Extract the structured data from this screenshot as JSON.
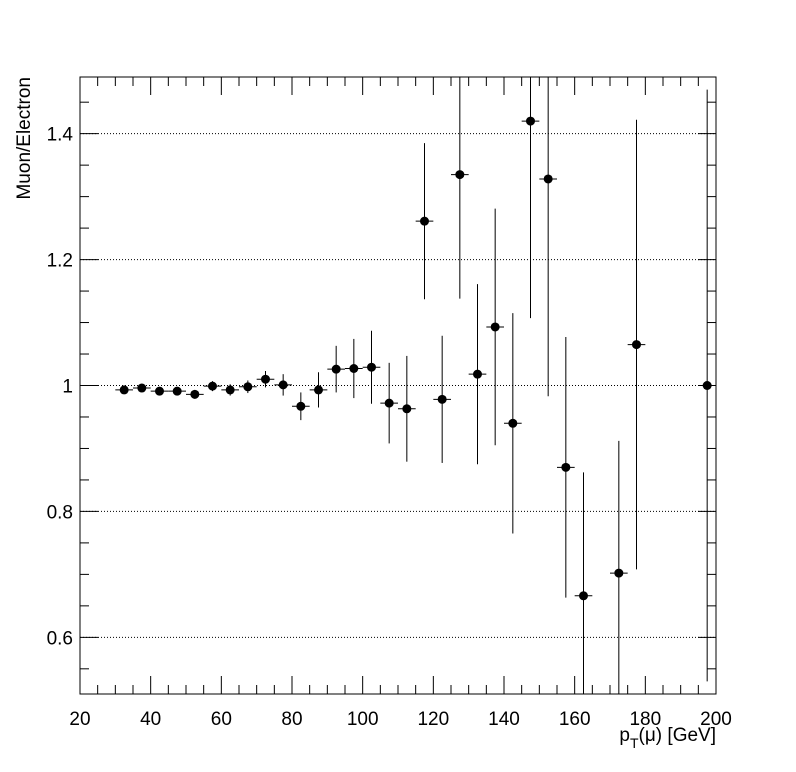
{
  "chart_data": {
    "type": "scatter",
    "title": "",
    "xlabel": "p_T(μ) [GeV]",
    "ylabel": "Muon/Electron",
    "xlim": [
      20,
      200
    ],
    "ylim": [
      0.51,
      1.49
    ],
    "x_ticks": [
      20,
      40,
      60,
      80,
      100,
      120,
      140,
      160,
      180,
      200
    ],
    "x_tick_labels": [
      "20",
      "40",
      "60",
      "80",
      "100",
      "120",
      "140",
      "160",
      "180",
      "200"
    ],
    "y_ticks": [
      0.6,
      0.8,
      1.0,
      1.2,
      1.4
    ],
    "y_tick_labels": [
      "0.6",
      "0.8",
      "1",
      "1.2",
      "1.4"
    ],
    "grid": "horizontal dotted at major y ticks",
    "legend": "none",
    "marker_color": "#000000",
    "series": [
      {
        "points": [
          {
            "x": 32.5,
            "y": 0.993,
            "xerr": 2.5,
            "yerr": 0.005
          },
          {
            "x": 37.5,
            "y": 0.996,
            "xerr": 2.5,
            "yerr": 0.005
          },
          {
            "x": 42.5,
            "y": 0.991,
            "xerr": 2.5,
            "yerr": 0.006
          },
          {
            "x": 47.5,
            "y": 0.991,
            "xerr": 2.5,
            "yerr": 0.006
          },
          {
            "x": 52.5,
            "y": 0.986,
            "xerr": 2.5,
            "yerr": 0.007
          },
          {
            "x": 57.5,
            "y": 0.999,
            "xerr": 2.5,
            "yerr": 0.008
          },
          {
            "x": 62.5,
            "y": 0.993,
            "xerr": 2.5,
            "yerr": 0.009
          },
          {
            "x": 67.5,
            "y": 0.998,
            "xerr": 2.5,
            "yerr": 0.01
          },
          {
            "x": 72.5,
            "y": 1.01,
            "xerr": 2.5,
            "yerr": 0.013
          },
          {
            "x": 77.5,
            "y": 1.001,
            "xerr": 2.5,
            "yerr": 0.017
          },
          {
            "x": 82.5,
            "y": 0.967,
            "xerr": 2.5,
            "yerr": 0.022
          },
          {
            "x": 87.5,
            "y": 0.993,
            "xerr": 2.5,
            "yerr": 0.028
          },
          {
            "x": 92.5,
            "y": 1.026,
            "xerr": 2.5,
            "yerr": 0.037
          },
          {
            "x": 97.5,
            "y": 1.027,
            "xerr": 2.5,
            "yerr": 0.047
          },
          {
            "x": 102.5,
            "y": 1.029,
            "xerr": 2.5,
            "yerr": 0.058
          },
          {
            "x": 107.5,
            "y": 0.972,
            "xerr": 2.5,
            "yerr": 0.064
          },
          {
            "x": 112.5,
            "y": 0.963,
            "xerr": 2.5,
            "yerr": 0.084
          },
          {
            "x": 117.5,
            "y": 1.261,
            "xerr": 2.5,
            "yerr": 0.124
          },
          {
            "x": 122.5,
            "y": 0.978,
            "xerr": 2.5,
            "yerr": 0.101
          },
          {
            "x": 127.5,
            "y": 1.335,
            "xerr": 2.5,
            "yerr": 0.197
          },
          {
            "x": 132.5,
            "y": 1.018,
            "xerr": 2.5,
            "yerr": 0.143
          },
          {
            "x": 137.5,
            "y": 1.093,
            "xerr": 2.5,
            "yerr": 0.188
          },
          {
            "x": 142.5,
            "y": 0.94,
            "xerr": 2.5,
            "yerr": 0.175
          },
          {
            "x": 147.5,
            "y": 1.42,
            "xerr": 2.5,
            "yerr": 0.313
          },
          {
            "x": 152.5,
            "y": 1.328,
            "xerr": 2.5,
            "yerr": 0.345
          },
          {
            "x": 157.5,
            "y": 0.87,
            "xerr": 2.5,
            "yerr": 0.207
          },
          {
            "x": 162.5,
            "y": 0.666,
            "xerr": 2.5,
            "yerr": 0.196
          },
          {
            "x": 172.5,
            "y": 0.702,
            "xerr": 2.5,
            "yerr": 0.21
          },
          {
            "x": 177.5,
            "y": 1.065,
            "xerr": 2.5,
            "yerr": 0.357
          },
          {
            "x": 197.5,
            "y": 1.0,
            "xerr": 2.5,
            "yerr": 0.47
          }
        ]
      }
    ]
  }
}
